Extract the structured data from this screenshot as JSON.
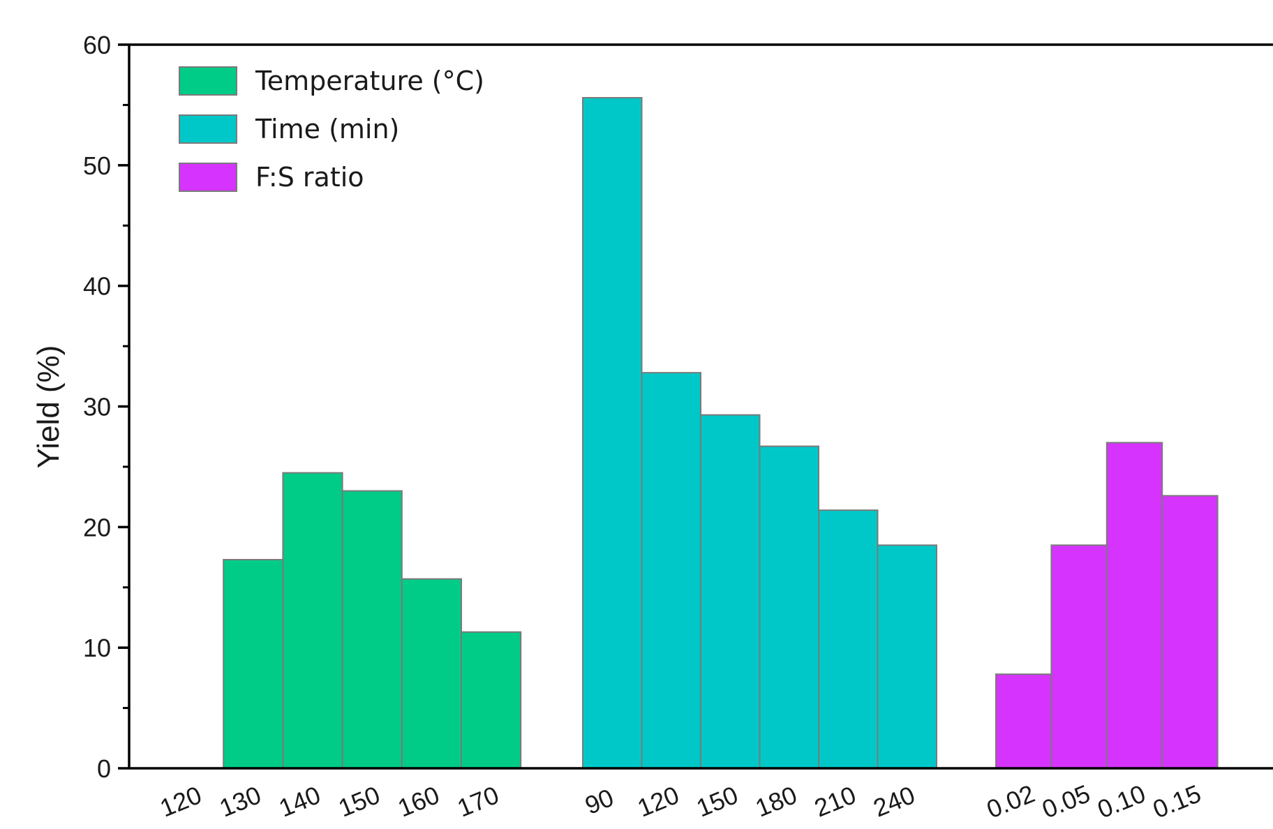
{
  "chart_data": {
    "type": "bar",
    "ylabel": "Yield (%)",
    "ylim": [
      0,
      60
    ],
    "yticks": [
      0,
      10,
      20,
      30,
      40,
      50,
      60
    ],
    "grid": false,
    "legend_position": "top-left",
    "series": [
      {
        "name": "Temperature (°C)",
        "color": "#00cc88",
        "categories": [
          "120",
          "130",
          "140",
          "150",
          "160",
          "170"
        ],
        "values": [
          0,
          17.3,
          24.5,
          23.0,
          15.7,
          11.3
        ]
      },
      {
        "name": "Time (min)",
        "color": "#00c8c8",
        "categories": [
          "90",
          "120",
          "150",
          "180",
          "210",
          "240"
        ],
        "values": [
          55.6,
          32.8,
          29.3,
          26.7,
          21.4,
          18.5
        ]
      },
      {
        "name": "F:S ratio",
        "color": "#d633ff",
        "categories": [
          "0.02",
          "0.05",
          "0.10",
          "0.15"
        ],
        "values": [
          7.8,
          18.5,
          27.0,
          22.6
        ]
      }
    ]
  }
}
